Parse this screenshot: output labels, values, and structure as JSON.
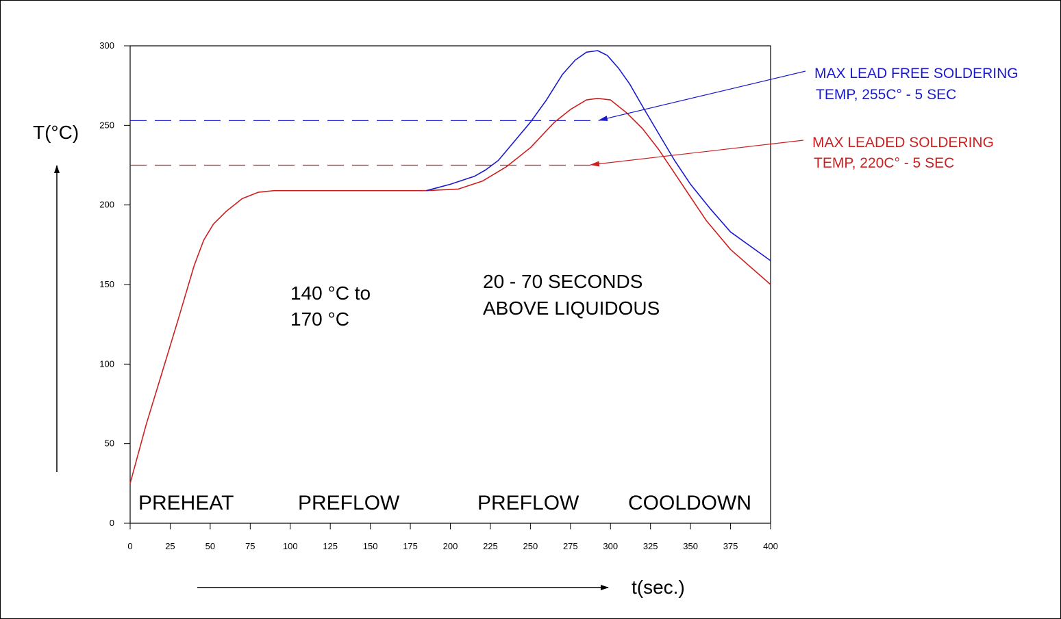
{
  "chart_data": {
    "type": "line",
    "xlabel": "t(sec.)",
    "ylabel": "T(°C)",
    "xlim": [
      0,
      400
    ],
    "ylim": [
      0,
      300
    ],
    "x_ticks": [
      0,
      25,
      50,
      75,
      100,
      125,
      150,
      175,
      200,
      225,
      250,
      275,
      300,
      325,
      350,
      375,
      400
    ],
    "y_ticks": [
      0,
      50,
      100,
      150,
      200,
      250,
      300
    ],
    "grid": false,
    "series": [
      {
        "color": "#cc1f1f",
        "x": [
          0,
          10,
          20,
          30,
          40,
          46,
          52,
          60,
          70,
          80,
          90,
          100,
          150,
          185,
          205,
          220,
          235,
          250,
          265,
          275,
          285,
          292,
          300,
          310,
          320,
          330,
          340,
          350,
          360,
          375,
          400
        ],
        "y": [
          25,
          62,
          95,
          128,
          162,
          178,
          188,
          196,
          204,
          208,
          209,
          209,
          209,
          209,
          210,
          215,
          224,
          236,
          252,
          260,
          266,
          267,
          266,
          258,
          248,
          235,
          220,
          205,
          190,
          172,
          150
        ]
      },
      {
        "color": "#1a1acc",
        "x": [
          185,
          200,
          215,
          222,
          230,
          240,
          250,
          260,
          270,
          278,
          285,
          292,
          298,
          305,
          312,
          320,
          330,
          340,
          350,
          362,
          375,
          400
        ],
        "y": [
          209,
          213,
          218,
          222,
          228,
          240,
          252,
          266,
          282,
          291,
          296,
          297,
          294,
          286,
          276,
          262,
          245,
          228,
          213,
          198,
          183,
          165
        ]
      }
    ],
    "reference_lines": [
      {
        "color": "#1a1acc",
        "y": 253,
        "x_end": 293
      },
      {
        "color": "#b02020",
        "y": 225,
        "x_end": 290
      }
    ],
    "region_labels": [
      "PREHEAT",
      "PREFLOW",
      "PREFLOW",
      "COOLDOWN"
    ],
    "notes": {
      "soak_line1": "140 °C to",
      "soak_line2": "170 °C",
      "liquidous_line1": "20 - 70 SECONDS",
      "liquidous_line2": "ABOVE LIQUIDOUS"
    },
    "callouts": {
      "lead_free_line1": "MAX LEAD FREE SOLDERING",
      "lead_free_line2": "TEMP, 255C° - 5 SEC",
      "lead_free_color": "#1a1acc",
      "leaded_line1": "MAX LEADED SOLDERING",
      "leaded_line2": "TEMP, 220C° - 5 SEC",
      "leaded_color": "#cc1f1f"
    }
  }
}
